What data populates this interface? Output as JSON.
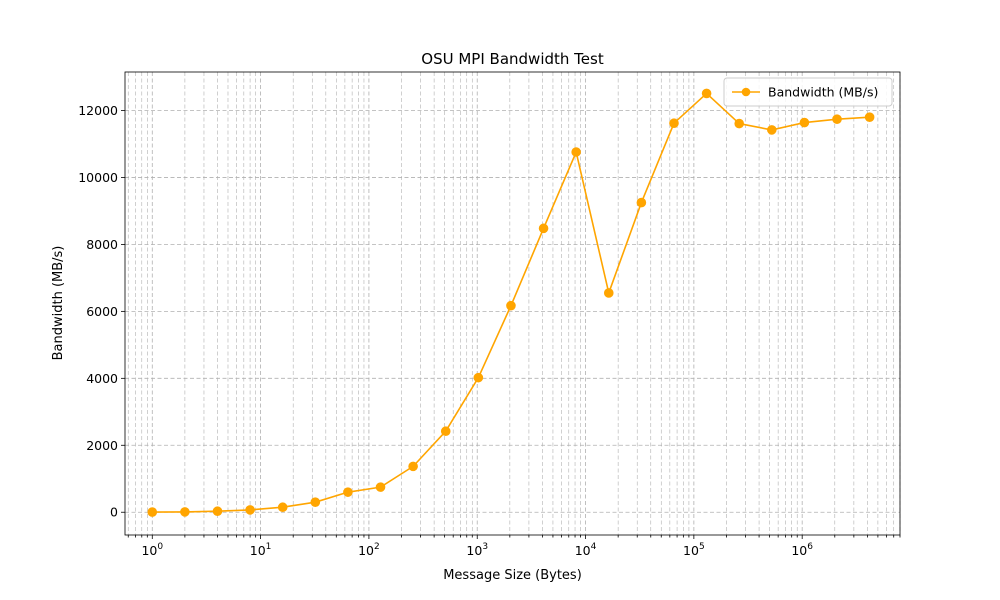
{
  "chart_data": {
    "type": "line",
    "title": "OSU MPI Bandwidth Test",
    "xlabel": "Message Size (Bytes)",
    "ylabel": "Bandwidth (MB/s)",
    "x_scale": "log",
    "xlim": [
      0.56,
      8000000
    ],
    "ylim": [
      -680,
      13150
    ],
    "x_ticks": [
      {
        "value": 1,
        "base": "10",
        "exp": "0"
      },
      {
        "value": 10,
        "base": "10",
        "exp": "1"
      },
      {
        "value": 100,
        "base": "10",
        "exp": "2"
      },
      {
        "value": 1000,
        "base": "10",
        "exp": "3"
      },
      {
        "value": 10000,
        "base": "10",
        "exp": "4"
      },
      {
        "value": 100000,
        "base": "10",
        "exp": "5"
      },
      {
        "value": 1000000,
        "base": "10",
        "exp": "6"
      }
    ],
    "y_ticks": [
      0,
      2000,
      4000,
      6000,
      8000,
      10000,
      12000
    ],
    "grid": true,
    "legend_position": "top-right",
    "series": [
      {
        "name": "Bandwidth (MB/s)",
        "color": "#FFA500",
        "marker": "circle",
        "x": [
          1,
          2,
          4,
          8,
          16,
          32,
          64,
          128,
          256,
          512,
          1024,
          2048,
          4096,
          8192,
          16384,
          32768,
          65536,
          131072,
          262144,
          524288,
          1048576,
          2097152,
          4194304
        ],
        "y": [
          5,
          10,
          30,
          70,
          150,
          300,
          600,
          750,
          1370,
          2420,
          4020,
          6170,
          8480,
          10760,
          6550,
          9250,
          11620,
          12510,
          11610,
          11420,
          11640,
          11740,
          11800
        ]
      }
    ]
  }
}
